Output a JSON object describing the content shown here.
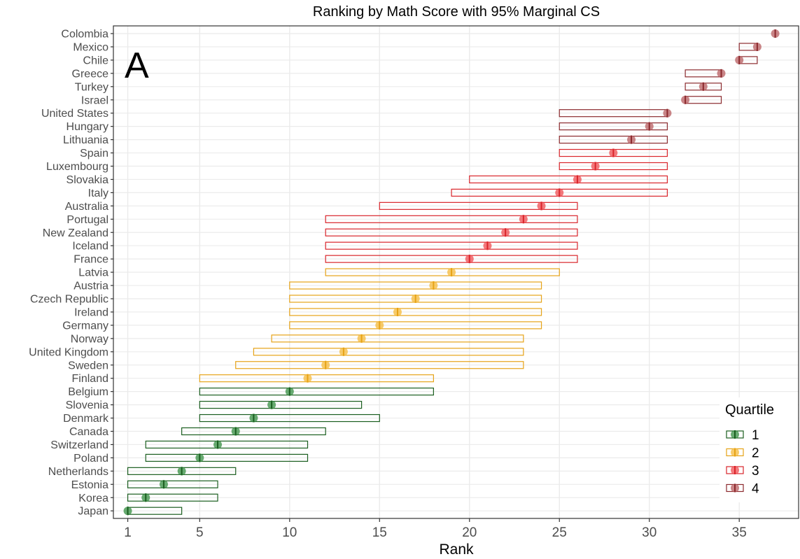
{
  "chart_data": {
    "type": "interval",
    "title": "Ranking by Math Score with 95% Marginal CS",
    "panel_label": "A",
    "xlabel": "Rank",
    "ylabel": "",
    "xlim": [
      0.2,
      38.3
    ],
    "x_ticks": [
      1,
      5,
      10,
      15,
      20,
      25,
      30,
      35
    ],
    "grid": true,
    "legend": {
      "title": "Quartile",
      "position": "bottom-right",
      "entries": [
        {
          "label": "1",
          "color": "#2e8b3a",
          "border": "#1a5e1f"
        },
        {
          "label": "2",
          "color": "#f5b731",
          "border": "#e6a317"
        },
        {
          "label": "3",
          "color": "#f0454a",
          "border": "#d9252b"
        },
        {
          "label": "4",
          "color": "#b5585a",
          "border": "#8b2a2e"
        }
      ]
    },
    "rows": [
      {
        "country": "Colombia",
        "rank": 37,
        "lower": 37,
        "upper": 37,
        "quartile": 4
      },
      {
        "country": "Mexico",
        "rank": 36,
        "lower": 35,
        "upper": 36,
        "quartile": 4
      },
      {
        "country": "Chile",
        "rank": 35,
        "lower": 35,
        "upper": 36,
        "quartile": 4
      },
      {
        "country": "Greece",
        "rank": 34,
        "lower": 32,
        "upper": 34,
        "quartile": 4
      },
      {
        "country": "Turkey",
        "rank": 33,
        "lower": 32,
        "upper": 34,
        "quartile": 4
      },
      {
        "country": "Israel",
        "rank": 32,
        "lower": 32,
        "upper": 34,
        "quartile": 4
      },
      {
        "country": "United States",
        "rank": 31,
        "lower": 25,
        "upper": 31,
        "quartile": 4
      },
      {
        "country": "Hungary",
        "rank": 30,
        "lower": 25,
        "upper": 31,
        "quartile": 4
      },
      {
        "country": "Lithuania",
        "rank": 29,
        "lower": 25,
        "upper": 31,
        "quartile": 4
      },
      {
        "country": "Spain",
        "rank": 28,
        "lower": 25,
        "upper": 31,
        "quartile": 3
      },
      {
        "country": "Luxembourg",
        "rank": 27,
        "lower": 25,
        "upper": 31,
        "quartile": 3
      },
      {
        "country": "Slovakia",
        "rank": 26,
        "lower": 20,
        "upper": 31,
        "quartile": 3
      },
      {
        "country": "Italy",
        "rank": 25,
        "lower": 19,
        "upper": 31,
        "quartile": 3
      },
      {
        "country": "Australia",
        "rank": 24,
        "lower": 15,
        "upper": 26,
        "quartile": 3
      },
      {
        "country": "Portugal",
        "rank": 23,
        "lower": 12,
        "upper": 26,
        "quartile": 3
      },
      {
        "country": "New Zealand",
        "rank": 22,
        "lower": 12,
        "upper": 26,
        "quartile": 3
      },
      {
        "country": "Iceland",
        "rank": 21,
        "lower": 12,
        "upper": 26,
        "quartile": 3
      },
      {
        "country": "France",
        "rank": 20,
        "lower": 12,
        "upper": 26,
        "quartile": 3
      },
      {
        "country": "Latvia",
        "rank": 19,
        "lower": 12,
        "upper": 25,
        "quartile": 2
      },
      {
        "country": "Austria",
        "rank": 18,
        "lower": 10,
        "upper": 24,
        "quartile": 2
      },
      {
        "country": "Czech Republic",
        "rank": 17,
        "lower": 10,
        "upper": 24,
        "quartile": 2
      },
      {
        "country": "Ireland",
        "rank": 16,
        "lower": 10,
        "upper": 24,
        "quartile": 2
      },
      {
        "country": "Germany",
        "rank": 15,
        "lower": 10,
        "upper": 24,
        "quartile": 2
      },
      {
        "country": "Norway",
        "rank": 14,
        "lower": 9,
        "upper": 23,
        "quartile": 2
      },
      {
        "country": "United Kingdom",
        "rank": 13,
        "lower": 8,
        "upper": 23,
        "quartile": 2
      },
      {
        "country": "Sweden",
        "rank": 12,
        "lower": 7,
        "upper": 23,
        "quartile": 2
      },
      {
        "country": "Finland",
        "rank": 11,
        "lower": 5,
        "upper": 18,
        "quartile": 2
      },
      {
        "country": "Belgium",
        "rank": 10,
        "lower": 5,
        "upper": 18,
        "quartile": 1
      },
      {
        "country": "Slovenia",
        "rank": 9,
        "lower": 5,
        "upper": 14,
        "quartile": 1
      },
      {
        "country": "Denmark",
        "rank": 8,
        "lower": 5,
        "upper": 15,
        "quartile": 1
      },
      {
        "country": "Canada",
        "rank": 7,
        "lower": 4,
        "upper": 12,
        "quartile": 1
      },
      {
        "country": "Switzerland",
        "rank": 6,
        "lower": 2,
        "upper": 11,
        "quartile": 1
      },
      {
        "country": "Poland",
        "rank": 5,
        "lower": 2,
        "upper": 11,
        "quartile": 1
      },
      {
        "country": "Netherlands",
        "rank": 4,
        "lower": 1,
        "upper": 7,
        "quartile": 1
      },
      {
        "country": "Estonia",
        "rank": 3,
        "lower": 1,
        "upper": 6,
        "quartile": 1
      },
      {
        "country": "Korea",
        "rank": 2,
        "lower": 1,
        "upper": 6,
        "quartile": 1
      },
      {
        "country": "Japan",
        "rank": 1,
        "lower": 1,
        "upper": 4,
        "quartile": 1
      }
    ]
  }
}
